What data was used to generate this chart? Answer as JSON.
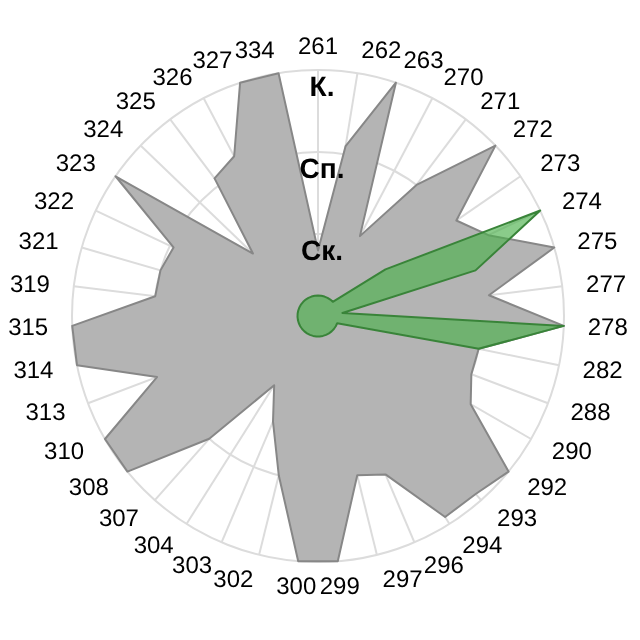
{
  "chart_data": {
    "type": "radar",
    "categories": [
      "261",
      "262",
      "263",
      "270",
      "271",
      "272",
      "273",
      "274",
      "275",
      "277",
      "278",
      "282",
      "288",
      "290",
      "292",
      "293",
      "294",
      "296",
      "297",
      "299",
      "300",
      "302",
      "303",
      "304",
      "307",
      "308",
      "310",
      "313",
      "314",
      "315",
      "319",
      "321",
      "322",
      "323",
      "324",
      "325",
      "326",
      "327",
      "334"
    ],
    "series": [
      {
        "color": "#b4b4b4",
        "values": [
          0.8,
          2.1,
          3,
          1.1,
          2,
          3,
          2.05,
          2.3,
          3,
          2.1,
          3,
          2,
          2,
          2.15,
          3,
          2.9,
          2.9,
          2.1,
          2,
          3,
          3,
          2,
          1.4,
          1,
          2,
          3,
          3,
          2.1,
          3,
          3,
          2,
          2,
          1.95,
          3,
          1.1,
          2.1,
          2.2,
          3,
          3
        ]
      },
      {
        "color": "#4cb04c",
        "values": [
          0.25,
          0.25,
          0.25,
          0.25,
          0.25,
          0.25,
          1,
          3,
          2,
          0.3,
          3,
          2,
          0.25,
          0.25,
          0.25,
          0.25,
          0.25,
          0.25,
          0.25,
          0.25,
          0.25,
          0.25,
          0.25,
          0.25,
          0.25,
          0.25,
          0.25,
          0.25,
          0.25,
          0.25,
          0.25,
          0.25,
          0.25,
          0.25,
          0.25,
          0.25,
          0.25,
          0.25,
          0.25
        ]
      }
    ],
    "ylim": [
      0,
      3
    ],
    "yticks": [
      {
        "value": 1,
        "label": "Ск."
      },
      {
        "value": 2,
        "label": "Сп."
      },
      {
        "value": 3,
        "label": "К."
      }
    ],
    "grid": true
  }
}
